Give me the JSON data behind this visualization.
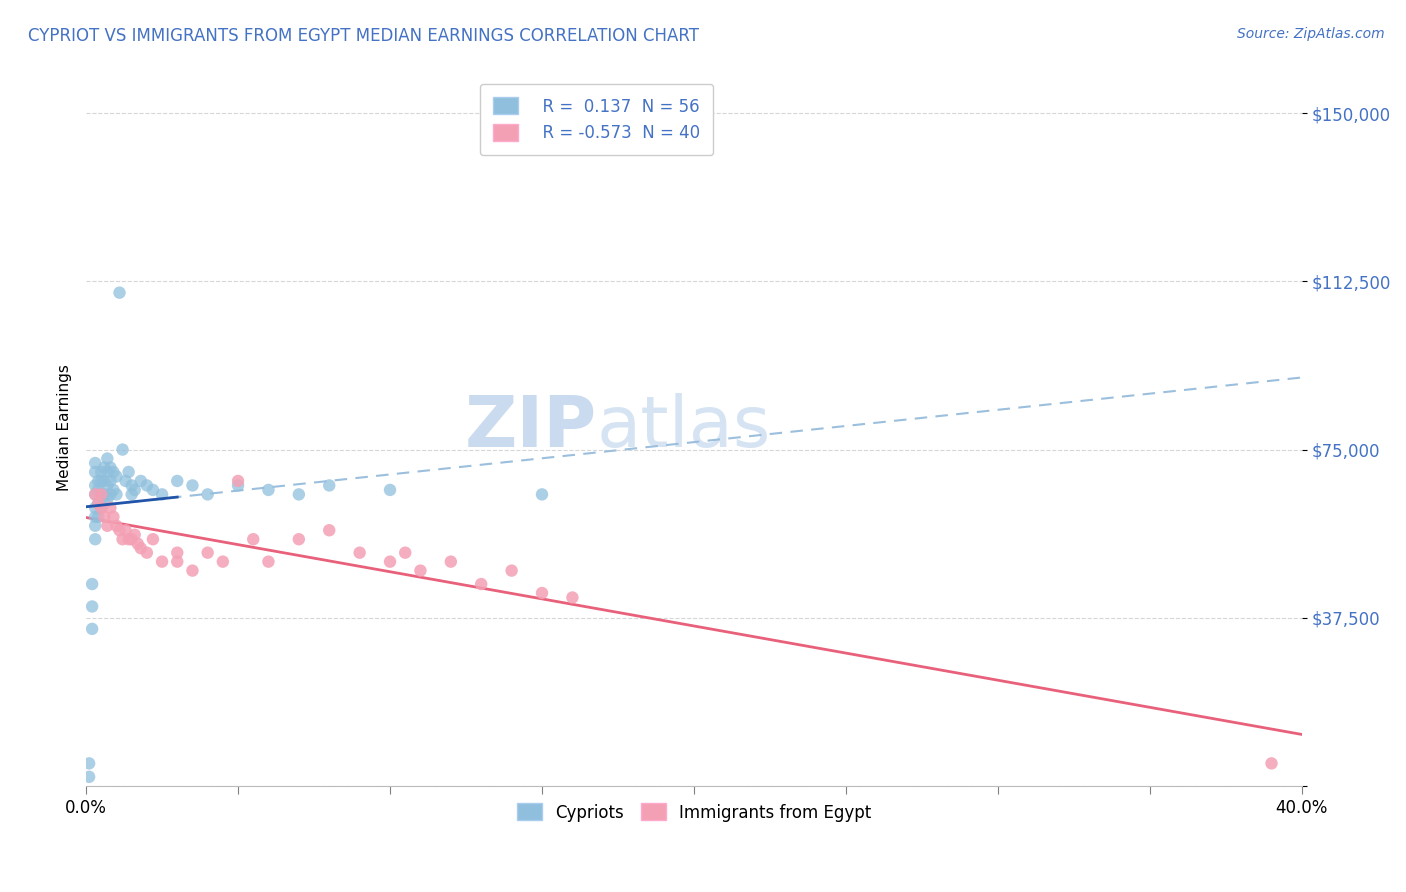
{
  "title": "CYPRIOT VS IMMIGRANTS FROM EGYPT MEDIAN EARNINGS CORRELATION CHART",
  "source": "Source: ZipAtlas.com",
  "ylabel": "Median Earnings",
  "y_ticks": [
    0,
    37500,
    75000,
    112500,
    150000
  ],
  "y_tick_labels": [
    "",
    "$37,500",
    "$75,000",
    "$112,500",
    "$150,000"
  ],
  "x_lim": [
    0.0,
    40.0
  ],
  "y_lim": [
    0,
    160000
  ],
  "x_ticks": [
    0,
    5,
    10,
    15,
    20,
    25,
    30,
    35,
    40
  ],
  "legend_text1": "R =  0.137  N = 56",
  "legend_text2": "R = -0.573  N = 40",
  "watermark_zip": "ZIP",
  "watermark_atlas": "atlas",
  "cypriot_color": "#8FBFDC",
  "egypt_color": "#F4A0B4",
  "cypriot_trend_dashed_color": "#9BBFDC",
  "cypriot_trend_solid_color": "#2255AA",
  "egypt_trend_color": "#E8607A",
  "title_color": "#4472C4",
  "source_color": "#4472C4",
  "y_tick_color": "#4472C4",
  "legend_text_color": "#4472C4",
  "background_color": "#FFFFFF",
  "cypriot_x": [
    0.1,
    0.1,
    0.2,
    0.2,
    0.2,
    0.3,
    0.3,
    0.3,
    0.3,
    0.3,
    0.3,
    0.3,
    0.3,
    0.4,
    0.4,
    0.4,
    0.4,
    0.5,
    0.5,
    0.5,
    0.5,
    0.6,
    0.6,
    0.6,
    0.6,
    0.7,
    0.7,
    0.7,
    0.7,
    0.8,
    0.8,
    0.8,
    0.9,
    0.9,
    1.0,
    1.0,
    1.1,
    1.2,
    1.3,
    1.4,
    1.5,
    1.5,
    1.6,
    1.8,
    2.0,
    2.2,
    2.5,
    3.0,
    3.5,
    4.0,
    5.0,
    6.0,
    7.0,
    8.0,
    10.0,
    15.0
  ],
  "cypriot_y": [
    5000,
    2000,
    35000,
    40000,
    45000,
    55000,
    58000,
    60000,
    62000,
    65000,
    67000,
    70000,
    72000,
    60000,
    63000,
    66000,
    68000,
    62000,
    65000,
    68000,
    70000,
    63000,
    65000,
    68000,
    71000,
    64000,
    67000,
    70000,
    73000,
    65000,
    68000,
    71000,
    66000,
    70000,
    65000,
    69000,
    110000,
    75000,
    68000,
    70000,
    65000,
    67000,
    66000,
    68000,
    67000,
    66000,
    65000,
    68000,
    67000,
    65000,
    67000,
    66000,
    65000,
    67000,
    66000,
    65000
  ],
  "egypt_x": [
    0.3,
    0.4,
    0.5,
    0.5,
    0.6,
    0.7,
    0.8,
    0.9,
    1.0,
    1.1,
    1.2,
    1.3,
    1.4,
    1.5,
    1.6,
    1.7,
    1.8,
    2.0,
    2.2,
    2.5,
    3.0,
    3.0,
    3.5,
    4.0,
    4.5,
    5.0,
    5.5,
    6.0,
    7.0,
    8.0,
    9.0,
    10.0,
    10.5,
    11.0,
    12.0,
    13.0,
    14.0,
    15.0,
    16.0,
    39.0
  ],
  "egypt_y": [
    65000,
    63000,
    65000,
    62000,
    60000,
    58000,
    62000,
    60000,
    58000,
    57000,
    55000,
    57000,
    55000,
    55000,
    56000,
    54000,
    53000,
    52000,
    55000,
    50000,
    52000,
    50000,
    48000,
    52000,
    50000,
    68000,
    55000,
    50000,
    55000,
    57000,
    52000,
    50000,
    52000,
    48000,
    50000,
    45000,
    48000,
    43000,
    42000,
    5000
  ]
}
